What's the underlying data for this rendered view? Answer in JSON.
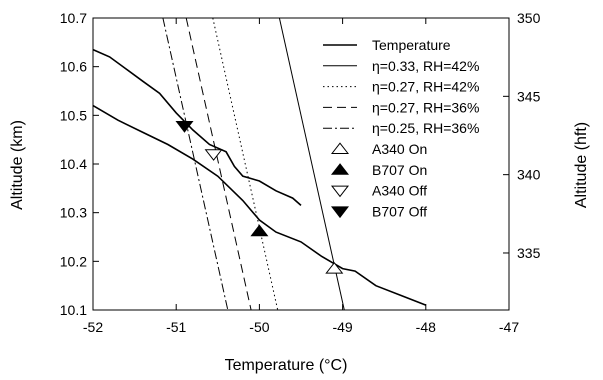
{
  "chart_data": {
    "type": "line",
    "xlabel": "Temperature (°C)",
    "ylabel": "Altitude (km)",
    "y2label": "Altitude (hft)",
    "xlim": [
      -52,
      -47
    ],
    "ylim": [
      10.1,
      10.7
    ],
    "y2lim": [
      331.36,
      350.0
    ],
    "xticks": [
      -52,
      -51,
      -50,
      -49,
      -48,
      -47
    ],
    "xtick_labels": [
      "-52",
      "-51",
      "-50",
      "-49",
      "-48",
      "-47"
    ],
    "yticks": [
      10.1,
      10.2,
      10.3,
      10.4,
      10.5,
      10.6,
      10.7
    ],
    "ytick_labels": [
      "10.1",
      "10.2",
      "10.3",
      "10.4",
      "10.5",
      "10.6",
      "10.7"
    ],
    "y2ticks": [
      335,
      340,
      345,
      350
    ],
    "y2tick_labels": [
      "335",
      "340",
      "345",
      "350"
    ],
    "grid": false,
    "legend_position": "top-right",
    "series": [
      {
        "name": "Temperature",
        "style": "solid-thick",
        "x": [
          -52.0,
          -51.7,
          -51.4,
          -51.1,
          -50.8,
          -50.5,
          -50.2,
          -50.0,
          -49.8,
          -49.5,
          -49.25,
          -49.0,
          -48.85,
          -48.6,
          -48.3,
          -48.0
        ],
        "y": [
          10.52,
          10.49,
          10.465,
          10.44,
          10.41,
          10.375,
          10.325,
          10.285,
          10.26,
          10.24,
          10.21,
          10.185,
          10.18,
          10.15,
          10.13,
          10.11
        ]
      },
      {
        "name": "Temperature",
        "style": "solid-thick",
        "x": [
          -52.0,
          -51.8,
          -51.6,
          -51.4,
          -51.2,
          -51.0,
          -50.8,
          -50.6,
          -50.4,
          -50.3,
          -50.2,
          -50.0,
          -49.8,
          -49.6,
          -49.5
        ],
        "y": [
          10.635,
          10.62,
          10.595,
          10.57,
          10.545,
          10.505,
          10.47,
          10.44,
          10.425,
          10.395,
          10.375,
          10.365,
          10.345,
          10.33,
          10.315
        ]
      },
      {
        "name": "η=0.33, RH=42%",
        "style": "solid",
        "x": [
          -49.76,
          -48.98
        ],
        "y": [
          10.7,
          10.1
        ]
      },
      {
        "name": "η=0.27, RH=42%",
        "style": "dotted",
        "x": [
          -50.56,
          -49.78
        ],
        "y": [
          10.7,
          10.1
        ]
      },
      {
        "name": "η=0.27, RH=36%",
        "style": "dashed",
        "x": [
          -50.88,
          -50.1
        ],
        "y": [
          10.7,
          10.1
        ]
      },
      {
        "name": "η=0.25, RH=36%",
        "style": "dashdot",
        "x": [
          -51.16,
          -50.38
        ],
        "y": [
          10.7,
          10.1
        ]
      }
    ],
    "markers": [
      {
        "name": "A340 On",
        "symbol": "triangle-up-open",
        "x": -49.1,
        "y": 10.185
      },
      {
        "name": "B707 On",
        "symbol": "triangle-up-filled",
        "x": -50.0,
        "y": 10.262
      },
      {
        "name": "A340 Off",
        "symbol": "triangle-down-open",
        "x": -50.55,
        "y": 10.42
      },
      {
        "name": "B707 Off",
        "symbol": "triangle-down-filled",
        "x": -50.9,
        "y": 10.478
      }
    ],
    "legend": [
      {
        "label": "Temperature",
        "symbol": "line-thick"
      },
      {
        "label": "η=0.33, RH=42%",
        "symbol": "solid"
      },
      {
        "label": "η=0.27, RH=42%",
        "symbol": "dotted"
      },
      {
        "label": "η=0.27, RH=36%",
        "symbol": "dashed"
      },
      {
        "label": "η=0.25, RH=36%",
        "symbol": "dashdot"
      },
      {
        "label": "A340 On",
        "symbol": "triangle-up-open"
      },
      {
        "label": "B707 On",
        "symbol": "triangle-up-filled"
      },
      {
        "label": "A340 Off",
        "symbol": "triangle-down-open"
      },
      {
        "label": "B707 Off",
        "symbol": "triangle-down-filled"
      }
    ]
  }
}
